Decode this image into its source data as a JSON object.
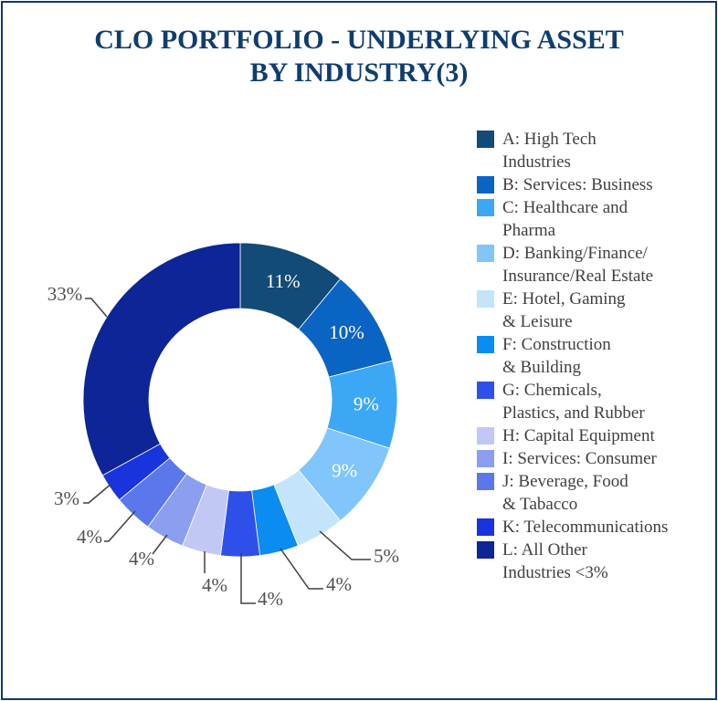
{
  "title_lines": [
    "CLO PORTFOLIO - UNDERLYING ASSET",
    "BY INDUSTRY(3)"
  ],
  "chart_data": {
    "type": "pie",
    "donut": true,
    "legend_position": "right",
    "categories": [
      "A: High Tech Industries",
      "B: Services: Business",
      "C: Healthcare and Pharma",
      "D: Banking/Finance/ Insurance/Real Estate",
      "E: Hotel, Gaming & Leisure",
      "F: Construction & Building",
      "G: Chemicals, Plastics, and Rubber",
      "H: Capital Equipment",
      "I: Services: Consumer",
      "J: Beverage, Food & Tabacco",
      "K: Telecommunications",
      "L: All Other Industries <3%"
    ],
    "values": [
      11,
      10,
      9,
      9,
      5,
      4,
      4,
      4,
      4,
      4,
      3,
      33
    ],
    "data_labels": [
      "11%",
      "10%",
      "9%",
      "9%",
      "5%",
      "4%",
      "4%",
      "4%",
      "4%",
      "4%",
      "3%",
      "33%"
    ],
    "colors": [
      "#124a78",
      "#0a64c4",
      "#3ca8f5",
      "#80c6fa",
      "#c4e4fb",
      "#0a8cf0",
      "#2f50e8",
      "#c2c8f6",
      "#8c9ef0",
      "#5a78ec",
      "#1934dc",
      "#0d2596"
    ]
  },
  "legend": [
    {
      "lines": [
        "A: High Tech",
        "Industries"
      ]
    },
    {
      "lines": [
        "B: Services: Business"
      ]
    },
    {
      "lines": [
        "C: Healthcare and",
        "Pharma"
      ]
    },
    {
      "lines": [
        "D: Banking/Finance/",
        "Insurance/Real Estate"
      ]
    },
    {
      "lines": [
        "E: Hotel, Gaming",
        "& Leisure"
      ]
    },
    {
      "lines": [
        "F: Construction",
        "& Building"
      ]
    },
    {
      "lines": [
        "G: Chemicals,",
        "Plastics, and Rubber"
      ]
    },
    {
      "lines": [
        "H: Capital Equipment"
      ]
    },
    {
      "lines": [
        "I: Services: Consumer"
      ]
    },
    {
      "lines": [
        "J: Beverage, Food",
        "& Tabacco"
      ]
    },
    {
      "lines": [
        "K: Telecommunications"
      ]
    },
    {
      "lines": [
        "L: All Other",
        "Industries <3%"
      ]
    }
  ]
}
